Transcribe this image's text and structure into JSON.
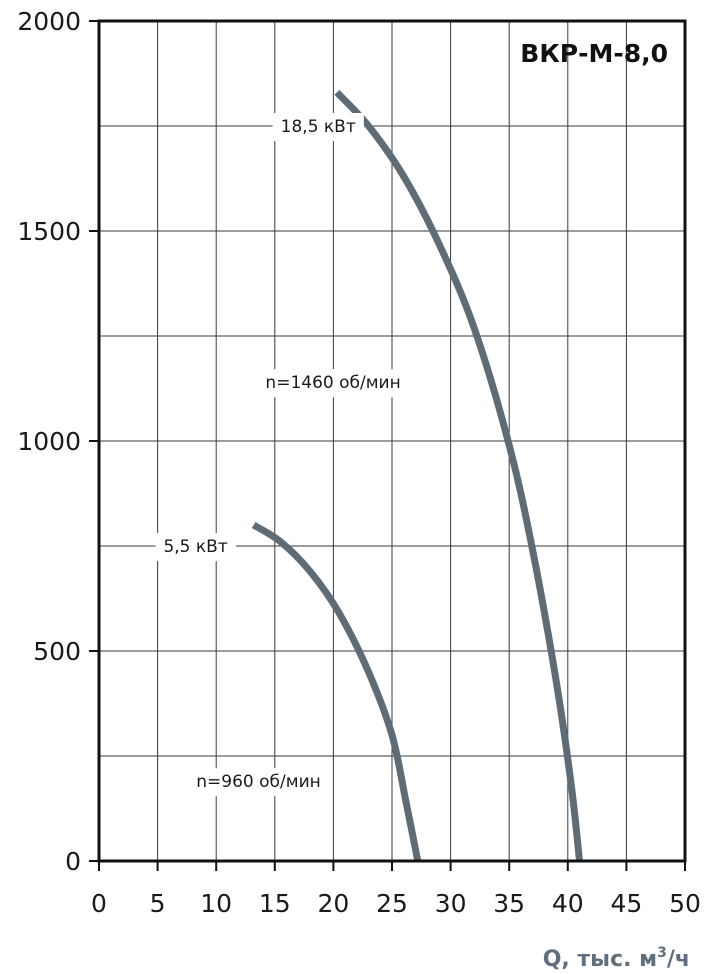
{
  "chart_data": {
    "type": "line",
    "title": "ВКР-М-8,0",
    "xlabel": "Q, тыс. м",
    "xlabel_sup": "3",
    "xlabel_suffix": "/ч",
    "ylabel": "",
    "xlim": [
      0,
      50
    ],
    "ylim": [
      0,
      2000
    ],
    "x_ticks": [
      0,
      5,
      10,
      15,
      20,
      25,
      30,
      35,
      40,
      45,
      50
    ],
    "y_ticks": [
      0,
      500,
      1000,
      1500,
      2000
    ],
    "grid": true,
    "minor_y_gridlines": [
      250,
      750,
      1250,
      1750
    ],
    "series": [
      {
        "name": "n=1460 об/мин",
        "color": "#606c75",
        "points": [
          [
            20.3,
            1830
          ],
          [
            23,
            1750
          ],
          [
            26,
            1630
          ],
          [
            29,
            1470
          ],
          [
            32,
            1270
          ],
          [
            35,
            990
          ],
          [
            37,
            740
          ],
          [
            39,
            430
          ],
          [
            40.3,
            180
          ],
          [
            41.0,
            0
          ]
        ]
      },
      {
        "name": "n=960 об/мин",
        "color": "#606c75",
        "points": [
          [
            13.2,
            800
          ],
          [
            15.5,
            760
          ],
          [
            18,
            690
          ],
          [
            20.5,
            590
          ],
          [
            23,
            450
          ],
          [
            25,
            300
          ],
          [
            26.2,
            140
          ],
          [
            27.2,
            0
          ]
        ]
      }
    ],
    "annotations": [
      {
        "text": "18,5 кВт",
        "x": 15.5,
        "y": 1750
      },
      {
        "text": "n=1460 об/мин",
        "x": 14.2,
        "y": 1140
      },
      {
        "text": "5,5 кВт",
        "x": 5.5,
        "y": 750
      },
      {
        "text": "n=960 об/мин",
        "x": 8.3,
        "y": 190
      }
    ]
  }
}
